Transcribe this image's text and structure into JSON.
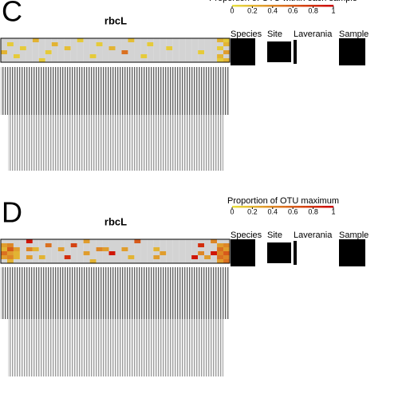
{
  "chart_data": [
    {
      "type": "heatmap",
      "panel": "C",
      "title": "rbcL",
      "legend_title": "Proportion of OTU within each sample",
      "cticks": [
        0,
        0.2,
        0.4,
        0.6,
        0.8,
        1
      ],
      "clim": [
        0,
        1
      ],
      "low_color": "#e8e040",
      "high_color": "#cc0000",
      "zero_color": "#d3d3d3",
      "annotations": [
        "Species",
        "Site",
        "Laverania",
        "Sample"
      ],
      "values": [
        [
          0,
          0,
          0,
          0,
          0,
          0.2,
          0,
          0,
          0,
          0,
          0,
          0,
          0.1,
          0,
          0,
          0,
          0,
          0,
          0,
          0,
          0.15,
          0,
          0,
          0,
          0,
          0,
          0,
          0,
          0,
          0,
          0,
          0,
          0,
          0,
          0.2,
          0.1
        ],
        [
          0,
          0.1,
          0,
          0,
          0,
          0,
          0,
          0,
          0.2,
          0,
          0,
          0,
          0,
          0,
          0,
          0.1,
          0,
          0,
          0,
          0,
          0,
          0,
          0,
          0.1,
          0,
          0,
          0,
          0,
          0,
          0,
          0,
          0,
          0,
          0,
          0,
          0.2
        ],
        [
          0,
          0,
          0,
          0.1,
          0,
          0,
          0,
          0,
          0,
          0,
          0.15,
          0,
          0,
          0,
          0,
          0,
          0,
          0.2,
          0,
          0,
          0,
          0,
          0,
          0,
          0,
          0,
          0.1,
          0,
          0,
          0,
          0,
          0,
          0,
          0,
          0.1,
          0
        ],
        [
          0.2,
          0,
          0,
          0,
          0,
          0,
          0,
          0.1,
          0,
          0,
          0,
          0,
          0,
          0,
          0,
          0,
          0,
          0,
          0,
          0.5,
          0,
          0,
          0,
          0,
          0,
          0,
          0,
          0,
          0,
          0,
          0,
          0.1,
          0,
          0,
          0,
          0.3
        ],
        [
          0,
          0,
          0.1,
          0,
          0,
          0,
          0,
          0,
          0,
          0,
          0,
          0,
          0,
          0,
          0.1,
          0,
          0,
          0,
          0,
          0,
          0,
          0,
          0.1,
          0,
          0,
          0,
          0,
          0,
          0,
          0,
          0,
          0,
          0,
          0,
          0.2,
          0
        ],
        [
          0,
          0,
          0,
          0,
          0,
          0,
          0.1,
          0,
          0,
          0,
          0,
          0,
          0,
          0,
          0,
          0,
          0,
          0,
          0,
          0,
          0,
          0,
          0,
          0,
          0,
          0,
          0,
          0,
          0,
          0,
          0,
          0,
          0,
          0,
          0.1,
          0.2
        ]
      ]
    },
    {
      "type": "heatmap",
      "panel": "D",
      "title": "rbcL",
      "legend_title": "Proportion of OTU maximum",
      "cticks": [
        0,
        0.2,
        0.4,
        0.6,
        0.8,
        1
      ],
      "clim": [
        0,
        1
      ],
      "low_color": "#e8e040",
      "high_color": "#cc0000",
      "zero_color": "#d3d3d3",
      "annotations": [
        "Species",
        "Site",
        "Laverania",
        "Sample"
      ],
      "values": [
        [
          0,
          0,
          0,
          0,
          0.9,
          0,
          0,
          0,
          0,
          0,
          0,
          0,
          0,
          0.3,
          0,
          0,
          0,
          0,
          0,
          0,
          0,
          0.6,
          0,
          0,
          0,
          0,
          0,
          0,
          0,
          0,
          0,
          0,
          0,
          0.4,
          0,
          0
        ],
        [
          0.3,
          0.4,
          0,
          0,
          0,
          0,
          0,
          0.5,
          0,
          0,
          0,
          0.7,
          0,
          0,
          0,
          0,
          0,
          0,
          0,
          0,
          0,
          0,
          0,
          0,
          0,
          0,
          0,
          0,
          0,
          0,
          0,
          0.8,
          0,
          0,
          0.3,
          0.4
        ],
        [
          0.2,
          0.6,
          0.3,
          0,
          0.4,
          0.2,
          0,
          0,
          0,
          0.3,
          0,
          0,
          0,
          0,
          0,
          0.4,
          0.3,
          0,
          0,
          0.3,
          0,
          0,
          0,
          0,
          0.2,
          0,
          0,
          0,
          0,
          0,
          0,
          0,
          0,
          0,
          0.5,
          0.3
        ],
        [
          0.5,
          0.3,
          0.2,
          0,
          0,
          0,
          0,
          0,
          0,
          0,
          0,
          0,
          0,
          0.3,
          0,
          0,
          0,
          0.9,
          0,
          0,
          0,
          0,
          0,
          0,
          0,
          0.3,
          0,
          0,
          0,
          0,
          0,
          0.4,
          0,
          0.9,
          0.4,
          0.6
        ],
        [
          0.3,
          0.4,
          0.2,
          0,
          0.3,
          0,
          0.2,
          0,
          0,
          0,
          0.8,
          0,
          0,
          0,
          0,
          0,
          0,
          0,
          0,
          0,
          0.2,
          0,
          0,
          0,
          0.3,
          0,
          0,
          0,
          0,
          0,
          0.9,
          0,
          0.3,
          0,
          0.5,
          0.4
        ],
        [
          0,
          0.2,
          0,
          0,
          0,
          0,
          0,
          0,
          0,
          0,
          0,
          0,
          0,
          0,
          0.2,
          0,
          0,
          0,
          0,
          0,
          0,
          0,
          0,
          0,
          0,
          0,
          0,
          0,
          0,
          0,
          0,
          0,
          0,
          0,
          0.3,
          0.5
        ]
      ]
    }
  ]
}
